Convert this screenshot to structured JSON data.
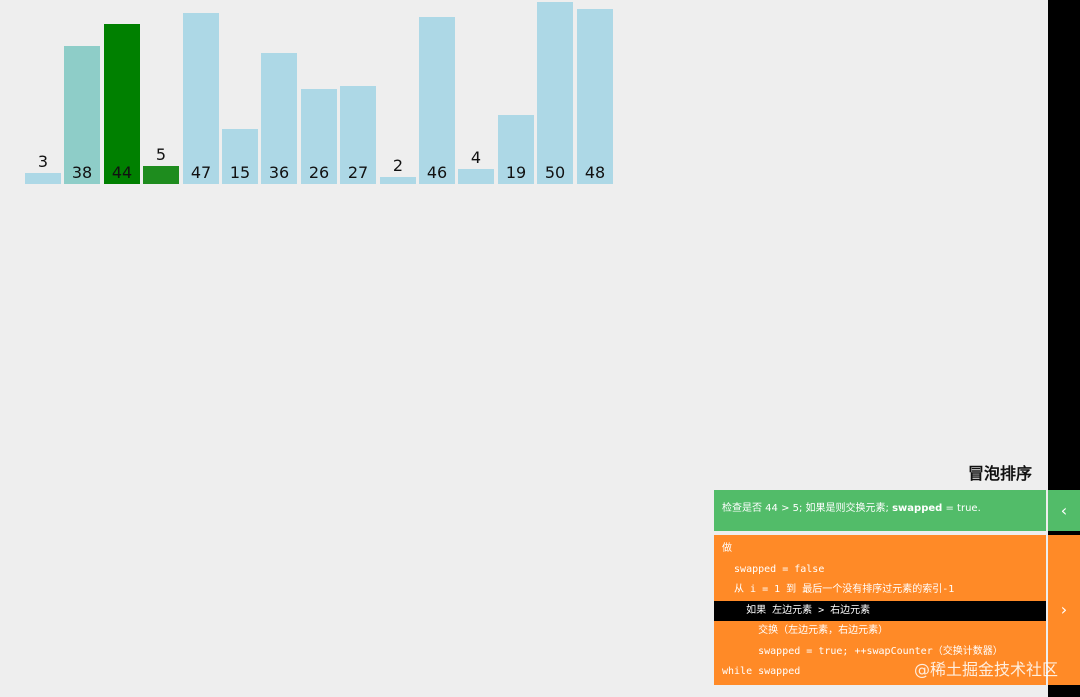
{
  "chart_data": {
    "type": "bar",
    "values": [
      3,
      38,
      44,
      5,
      47,
      15,
      36,
      26,
      27,
      2,
      46,
      4,
      19,
      50,
      48
    ],
    "bar_states": [
      "default",
      "sorted-check",
      "compare",
      "compare",
      "default",
      "default",
      "default",
      "default",
      "default",
      "default",
      "default",
      "default",
      "default",
      "default",
      "default"
    ],
    "ylim": [
      0,
      50
    ]
  },
  "colors": {
    "default": "#add8e6",
    "sorted-check": "#8ecdc8",
    "compare": "#008000",
    "compare-dark": "#1e8c1e",
    "status_bg": "#52bc69",
    "code_bg": "#ff8a27"
  },
  "algorithm": {
    "title": "冒泡排序"
  },
  "status": {
    "prefix": "检查是否 44 > 5; 如果是则交换元素;",
    "bold": "swapped",
    "suffix": " = true."
  },
  "code": {
    "lines": [
      "做",
      "  swapped = false",
      "  从 i = 1 到 最后一个没有排序过元素的索引-1",
      "    如果 左边元素 > 右边元素",
      "      交换（左边元素，右边元素）",
      "      swapped = true; ++swapCounter（交换计数器）",
      "while swapped"
    ],
    "active_index": 3
  },
  "controls": {
    "status_toggle": "‹",
    "code_toggle": "›"
  },
  "watermark": "@稀土掘金技术社区"
}
